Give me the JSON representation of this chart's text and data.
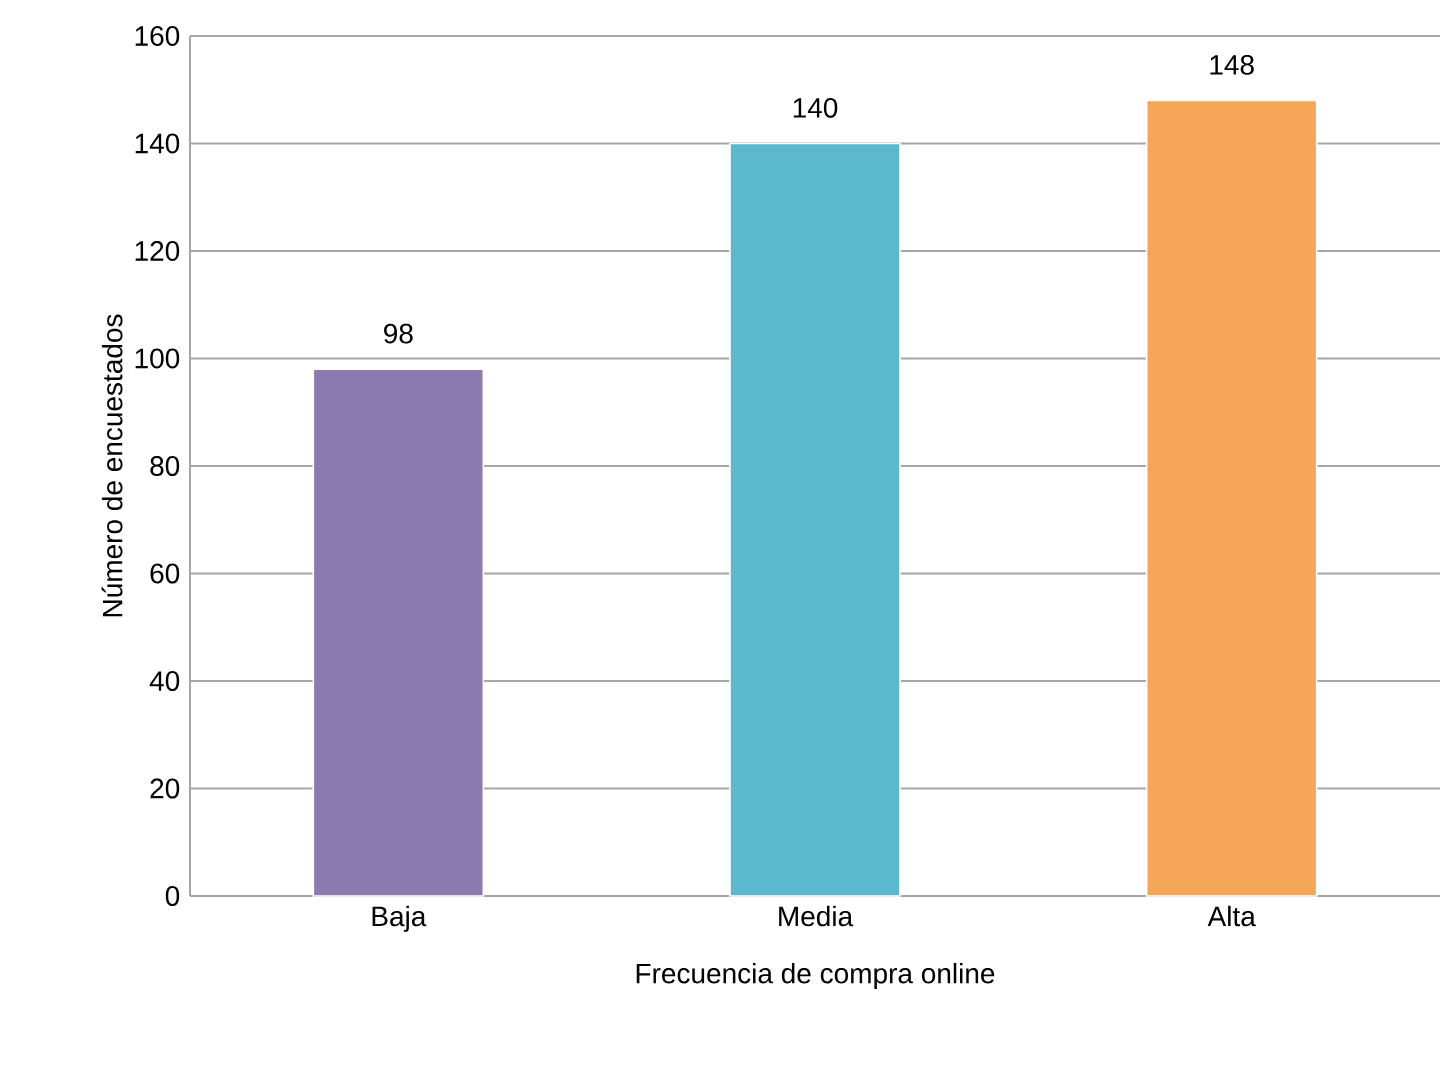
{
  "chart_data": {
    "type": "bar",
    "xlabel": "Frecuencia de compra online",
    "ylabel": "Número de encuestados",
    "categories": [
      "Baja",
      "Media",
      "Alta"
    ],
    "values": [
      98,
      140,
      148
    ],
    "colors": [
      "#8c7bb0",
      "#5bb8cf",
      "#f4a556"
    ],
    "ylim": [
      0,
      160
    ],
    "yticks": [
      0,
      20,
      40,
      60,
      80,
      100,
      120,
      140,
      160
    ],
    "grid": "y",
    "data_labels": true
  }
}
